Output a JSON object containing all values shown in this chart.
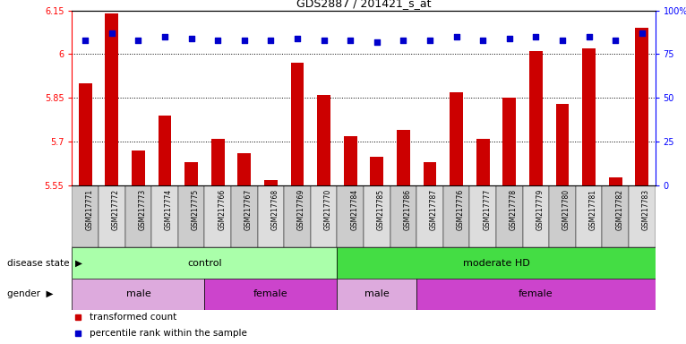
{
  "title": "GDS2887 / 201421_s_at",
  "samples": [
    "GSM217771",
    "GSM217772",
    "GSM217773",
    "GSM217774",
    "GSM217775",
    "GSM217766",
    "GSM217767",
    "GSM217768",
    "GSM217769",
    "GSM217770",
    "GSM217784",
    "GSM217785",
    "GSM217786",
    "GSM217787",
    "GSM217776",
    "GSM217777",
    "GSM217778",
    "GSM217779",
    "GSM217780",
    "GSM217781",
    "GSM217782",
    "GSM217783"
  ],
  "bar_values": [
    5.9,
    6.14,
    5.67,
    5.79,
    5.63,
    5.71,
    5.66,
    5.57,
    5.97,
    5.86,
    5.72,
    5.65,
    5.74,
    5.63,
    5.87,
    5.71,
    5.85,
    6.01,
    5.83,
    6.02,
    5.58,
    6.09
  ],
  "percentile_values": [
    83,
    87,
    83,
    85,
    84,
    83,
    83,
    83,
    84,
    83,
    83,
    82,
    83,
    83,
    85,
    83,
    84,
    85,
    83,
    85,
    83,
    87
  ],
  "ylim_left": [
    5.55,
    6.15
  ],
  "ylim_right": [
    0,
    100
  ],
  "yticks_left": [
    5.55,
    5.7,
    5.85,
    6.0,
    6.15
  ],
  "ytick_labels_left": [
    "5.55",
    "5.7",
    "5.85",
    "6",
    "6.15"
  ],
  "yticks_right": [
    0,
    25,
    50,
    75,
    100
  ],
  "ytick_labels_right": [
    "0",
    "25",
    "50",
    "75",
    "100%"
  ],
  "bar_color": "#cc0000",
  "dot_color": "#0000cc",
  "disease_state_groups": [
    {
      "label": "control",
      "start": 0,
      "end": 10,
      "color": "#aaffaa"
    },
    {
      "label": "moderate HD",
      "start": 10,
      "end": 22,
      "color": "#44dd44"
    }
  ],
  "gender_groups": [
    {
      "label": "male",
      "start": 0,
      "end": 5,
      "color": "#ddaadd"
    },
    {
      "label": "female",
      "start": 5,
      "end": 10,
      "color": "#cc44cc"
    },
    {
      "label": "male",
      "start": 10,
      "end": 13,
      "color": "#ddaadd"
    },
    {
      "label": "female",
      "start": 13,
      "end": 22,
      "color": "#cc44cc"
    }
  ],
  "legend_items": [
    {
      "label": "transformed count",
      "color": "#cc0000"
    },
    {
      "label": "percentile rank within the sample",
      "color": "#0000cc"
    }
  ],
  "ds_label": "disease state",
  "gender_label": "gender",
  "col_bg_colors": [
    "#cccccc",
    "#dddddd"
  ]
}
